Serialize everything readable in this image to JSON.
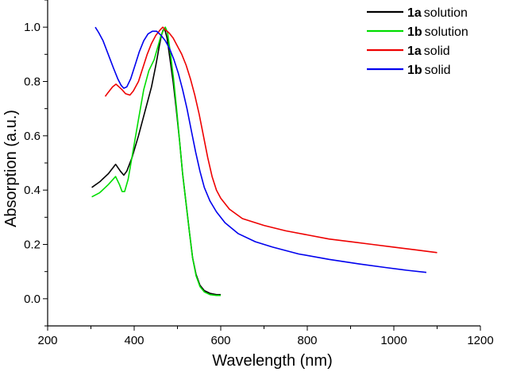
{
  "chart_data": {
    "type": "line",
    "title": "",
    "xlabel": "Wavelength (nm)",
    "ylabel": "Absorption (a.u.)",
    "xlim": [
      200,
      1200
    ],
    "ylim": [
      -0.1,
      1.1
    ],
    "x_ticks": [
      200,
      400,
      600,
      800,
      1000,
      1200
    ],
    "y_ticks": [
      0.0,
      0.2,
      0.4,
      0.6,
      0.8,
      1.0
    ],
    "x_tick_labels": [
      "200",
      "400",
      "600",
      "800",
      "1000",
      "1200"
    ],
    "y_tick_labels": [
      "0.0",
      "0.2",
      "0.4",
      "0.6",
      "0.8",
      "1.0"
    ],
    "grid": false,
    "legend_position": "top-right",
    "series": [
      {
        "name": "1a solution",
        "compound": "1a",
        "state": "solution",
        "color": "#000000",
        "points": [
          [
            302,
            0.41
          ],
          [
            320,
            0.43
          ],
          [
            340,
            0.46
          ],
          [
            357,
            0.495
          ],
          [
            368,
            0.47
          ],
          [
            376,
            0.455
          ],
          [
            383,
            0.47
          ],
          [
            395,
            0.52
          ],
          [
            410,
            0.6
          ],
          [
            425,
            0.69
          ],
          [
            440,
            0.78
          ],
          [
            450,
            0.86
          ],
          [
            458,
            0.93
          ],
          [
            463,
            0.97
          ],
          [
            467,
            0.99
          ],
          [
            471,
            0.99
          ],
          [
            476,
            0.96
          ],
          [
            483,
            0.88
          ],
          [
            490,
            0.8
          ],
          [
            497,
            0.7
          ],
          [
            505,
            0.58
          ],
          [
            512,
            0.46
          ],
          [
            520,
            0.35
          ],
          [
            528,
            0.24
          ],
          [
            535,
            0.15
          ],
          [
            543,
            0.09
          ],
          [
            552,
            0.05
          ],
          [
            562,
            0.03
          ],
          [
            575,
            0.02
          ],
          [
            590,
            0.015
          ],
          [
            600,
            0.015
          ]
        ]
      },
      {
        "name": "1b solution",
        "compound": "1b",
        "state": "solution",
        "color": "#00dd00",
        "points": [
          [
            302,
            0.375
          ],
          [
            320,
            0.39
          ],
          [
            340,
            0.42
          ],
          [
            357,
            0.45
          ],
          [
            366,
            0.42
          ],
          [
            372,
            0.395
          ],
          [
            378,
            0.395
          ],
          [
            386,
            0.44
          ],
          [
            398,
            0.55
          ],
          [
            410,
            0.66
          ],
          [
            422,
            0.77
          ],
          [
            434,
            0.84
          ],
          [
            446,
            0.88
          ],
          [
            455,
            0.93
          ],
          [
            462,
            0.97
          ],
          [
            468,
            0.99
          ],
          [
            472,
            1.0
          ],
          [
            477,
            0.98
          ],
          [
            484,
            0.9
          ],
          [
            491,
            0.81
          ],
          [
            498,
            0.7
          ],
          [
            505,
            0.58
          ],
          [
            512,
            0.46
          ],
          [
            520,
            0.35
          ],
          [
            528,
            0.24
          ],
          [
            535,
            0.15
          ],
          [
            543,
            0.085
          ],
          [
            552,
            0.045
          ],
          [
            562,
            0.025
          ],
          [
            575,
            0.015
          ],
          [
            590,
            0.012
          ],
          [
            600,
            0.012
          ]
        ]
      },
      {
        "name": "1a solid",
        "compound": "1a",
        "state": "solid",
        "color": "#ee0000",
        "points": [
          [
            333,
            0.745
          ],
          [
            340,
            0.76
          ],
          [
            350,
            0.78
          ],
          [
            358,
            0.79
          ],
          [
            365,
            0.78
          ],
          [
            372,
            0.77
          ],
          [
            380,
            0.755
          ],
          [
            390,
            0.75
          ],
          [
            398,
            0.765
          ],
          [
            410,
            0.8
          ],
          [
            420,
            0.85
          ],
          [
            430,
            0.9
          ],
          [
            440,
            0.94
          ],
          [
            450,
            0.97
          ],
          [
            460,
            0.99
          ],
          [
            466,
            1.0
          ],
          [
            472,
            0.99
          ],
          [
            480,
            0.98
          ],
          [
            490,
            0.96
          ],
          [
            500,
            0.93
          ],
          [
            510,
            0.9
          ],
          [
            520,
            0.86
          ],
          [
            530,
            0.81
          ],
          [
            540,
            0.75
          ],
          [
            550,
            0.68
          ],
          [
            560,
            0.6
          ],
          [
            570,
            0.52
          ],
          [
            580,
            0.45
          ],
          [
            590,
            0.4
          ],
          [
            600,
            0.37
          ],
          [
            620,
            0.33
          ],
          [
            650,
            0.295
          ],
          [
            700,
            0.27
          ],
          [
            750,
            0.25
          ],
          [
            800,
            0.235
          ],
          [
            850,
            0.22
          ],
          [
            900,
            0.21
          ],
          [
            950,
            0.2
          ],
          [
            1000,
            0.19
          ],
          [
            1050,
            0.18
          ],
          [
            1100,
            0.17
          ]
        ]
      },
      {
        "name": "1b solid",
        "compound": "1b",
        "state": "solid",
        "color": "#0000ee",
        "points": [
          [
            310,
            1.0
          ],
          [
            318,
            0.98
          ],
          [
            328,
            0.95
          ],
          [
            340,
            0.9
          ],
          [
            352,
            0.85
          ],
          [
            362,
            0.81
          ],
          [
            370,
            0.785
          ],
          [
            376,
            0.775
          ],
          [
            383,
            0.78
          ],
          [
            392,
            0.81
          ],
          [
            402,
            0.86
          ],
          [
            412,
            0.91
          ],
          [
            422,
            0.95
          ],
          [
            432,
            0.975
          ],
          [
            442,
            0.985
          ],
          [
            452,
            0.985
          ],
          [
            462,
            0.97
          ],
          [
            472,
            0.95
          ],
          [
            482,
            0.92
          ],
          [
            492,
            0.88
          ],
          [
            502,
            0.83
          ],
          [
            512,
            0.77
          ],
          [
            522,
            0.7
          ],
          [
            532,
            0.62
          ],
          [
            542,
            0.54
          ],
          [
            552,
            0.47
          ],
          [
            562,
            0.41
          ],
          [
            575,
            0.36
          ],
          [
            590,
            0.32
          ],
          [
            610,
            0.28
          ],
          [
            640,
            0.24
          ],
          [
            680,
            0.21
          ],
          [
            720,
            0.19
          ],
          [
            780,
            0.165
          ],
          [
            850,
            0.145
          ],
          [
            920,
            0.128
          ],
          [
            980,
            0.115
          ],
          [
            1030,
            0.105
          ],
          [
            1075,
            0.097
          ]
        ]
      }
    ]
  }
}
